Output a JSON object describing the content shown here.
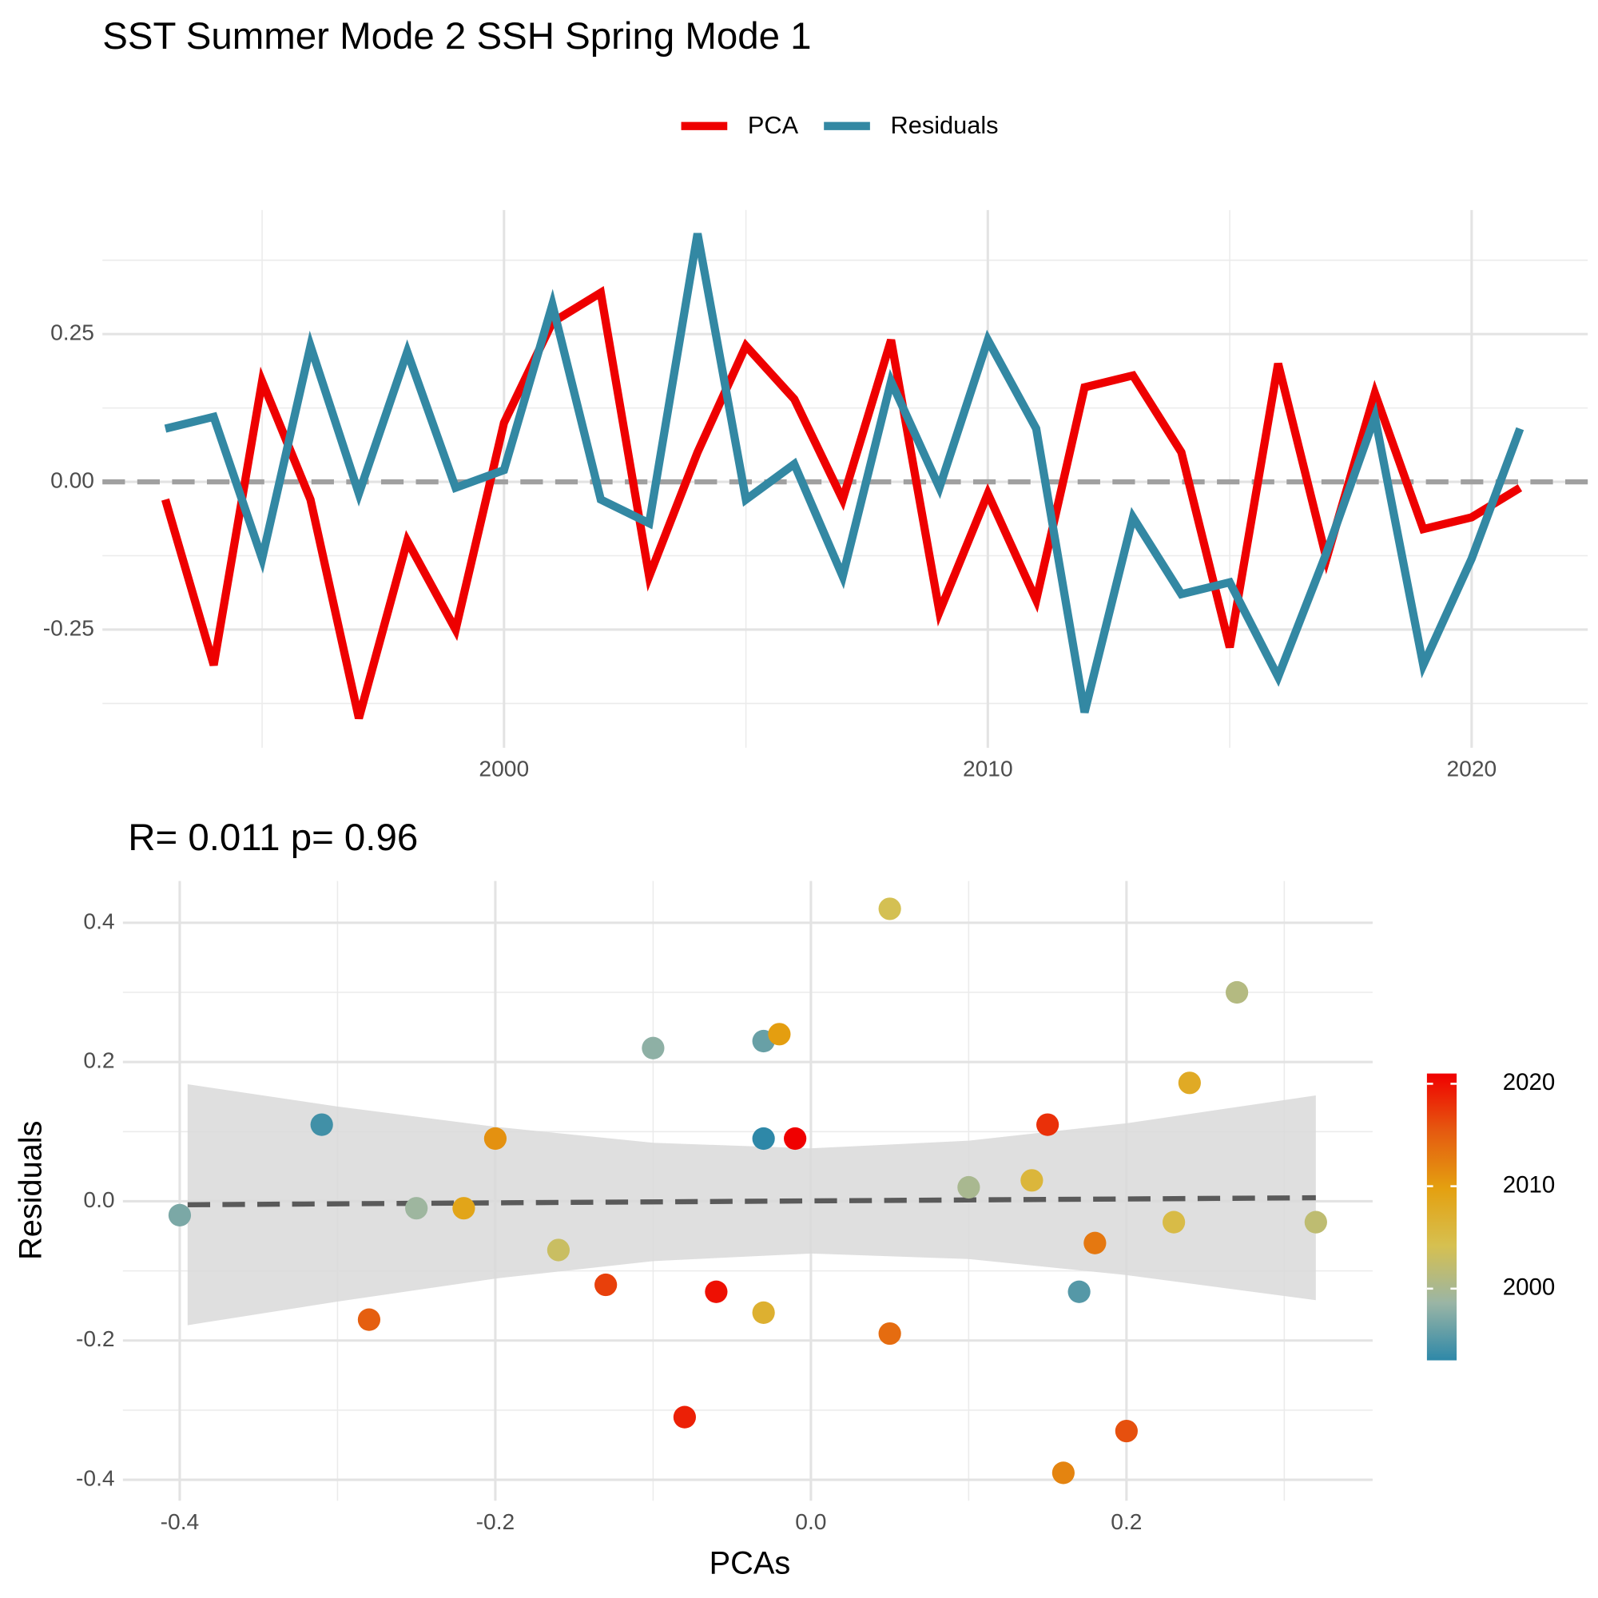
{
  "chart_data": [
    {
      "type": "line",
      "title": "SST Summer Mode 2 SSH Spring Mode 1",
      "x": [
        1993,
        1994,
        1995,
        1996,
        1997,
        1998,
        1999,
        2000,
        2001,
        2002,
        2003,
        2004,
        2005,
        2006,
        2007,
        2008,
        2009,
        2010,
        2011,
        2012,
        2013,
        2014,
        2015,
        2016,
        2017,
        2018,
        2019,
        2020,
        2021
      ],
      "series": [
        {
          "name": "PCA",
          "color": "#ee0000",
          "values": [
            -0.03,
            -0.31,
            0.17,
            -0.03,
            -0.4,
            -0.1,
            -0.25,
            0.1,
            0.27,
            0.32,
            -0.16,
            0.05,
            0.23,
            0.14,
            -0.03,
            0.24,
            -0.22,
            -0.02,
            -0.2,
            0.16,
            0.18,
            0.05,
            -0.28,
            0.2,
            -0.13,
            0.15,
            -0.08,
            -0.06,
            -0.01
          ]
        },
        {
          "name": "Residuals",
          "color": "#3388a3",
          "values": [
            0.09,
            0.11,
            -0.13,
            0.23,
            -0.02,
            0.22,
            -0.01,
            0.02,
            0.3,
            -0.03,
            -0.07,
            0.42,
            -0.03,
            0.03,
            -0.16,
            0.17,
            -0.01,
            0.24,
            0.09,
            -0.39,
            -0.06,
            -0.19,
            -0.17,
            -0.33,
            -0.12,
            0.11,
            -0.31,
            -0.13,
            0.09
          ]
        }
      ],
      "xlim": [
        1991.7,
        2022.4
      ],
      "xticks": [
        2000,
        2010,
        2020
      ],
      "ylim": [
        -0.45,
        0.46
      ],
      "yticks": [
        -0.25,
        {
          "value": 0,
          "label": "0.00"
        },
        0.25
      ],
      "hline": 0,
      "grid": true,
      "legend": "top"
    },
    {
      "type": "scatter",
      "title": "R= 0.011  p= 0.96",
      "xlabel": "PCAs",
      "ylabel": "Residuals",
      "x": [
        -0.03,
        -0.31,
        0.17,
        -0.03,
        -0.4,
        -0.1,
        -0.25,
        0.1,
        0.27,
        0.32,
        -0.16,
        0.05,
        0.23,
        0.14,
        -0.03,
        0.24,
        -0.22,
        -0.02,
        -0.2,
        0.16,
        0.18,
        0.05,
        -0.28,
        0.2,
        -0.13,
        0.15,
        -0.08,
        -0.06,
        -0.01
      ],
      "values": [
        0.09,
        0.11,
        -0.13,
        0.23,
        -0.02,
        0.22,
        -0.01,
        0.02,
        0.3,
        -0.03,
        -0.07,
        0.42,
        -0.03,
        0.03,
        -0.16,
        0.17,
        -0.01,
        0.24,
        0.09,
        -0.39,
        -0.06,
        -0.19,
        -0.17,
        -0.33,
        -0.12,
        0.11,
        -0.31,
        -0.13,
        0.09
      ],
      "color_values": [
        1993,
        1994,
        1995,
        1996,
        1997,
        1998,
        1999,
        2000,
        2001,
        2002,
        2003,
        2004,
        2005,
        2006,
        2007,
        2008,
        2009,
        2010,
        2011,
        2012,
        2013,
        2014,
        2015,
        2016,
        2017,
        2018,
        2019,
        2020,
        2021
      ],
      "colorscale": [
        "#2e88a8",
        "#9ab5a5",
        "#d6c050",
        "#e4a010",
        "#e55a10",
        "#f00000"
      ],
      "colorlim": [
        1993,
        2021
      ],
      "colorticks": [
        2000,
        2010,
        2020
      ],
      "fit": {
        "x": [
          -0.395,
          0.32
        ],
        "y": [
          -0.005,
          0.005
        ]
      },
      "band": {
        "x": [
          -0.395,
          -0.3,
          -0.2,
          -0.1,
          0,
          0.1,
          0.2,
          0.32
        ],
        "upper": [
          0.168,
          0.136,
          0.107,
          0.084,
          0.076,
          0.087,
          0.112,
          0.152
        ],
        "lower": [
          -0.178,
          -0.144,
          -0.111,
          -0.086,
          -0.075,
          -0.083,
          -0.106,
          -0.142
        ]
      },
      "xlim": [
        -0.436,
        0.356
      ],
      "xticks": [
        -0.4,
        -0.2,
        {
          "value": 0,
          "label": "0.0"
        },
        0.2
      ],
      "ylim": [
        -0.43,
        0.46
      ],
      "yticks": [
        -0.4,
        -0.2,
        {
          "value": 0,
          "label": "0.0"
        },
        0.2,
        0.4
      ],
      "grid": true
    }
  ]
}
